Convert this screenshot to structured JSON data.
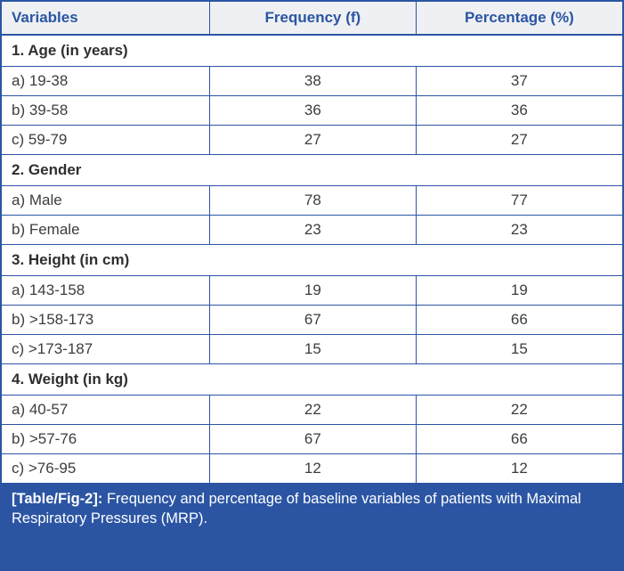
{
  "colors": {
    "accent": "#2b55a3",
    "header_bg": "#eef0f3",
    "body_text": "#3d3d3d",
    "caption_bg": "#2b55a3",
    "caption_text": "#ffffff"
  },
  "caption": {
    "label": "[Table/Fig-2]:",
    "text": "Frequency and percentage of baseline variables of patients with Maximal Respiratory Pressures (MRP)."
  },
  "chart_data": {
    "type": "table",
    "title": "[Table/Fig-2]: Frequency and percentage of baseline variables of patients with Maximal Respiratory Pressures (MRP).",
    "columns": [
      "Variables",
      "Frequency (f)",
      "Percentage (%)"
    ],
    "sections": [
      {
        "header": "1. Age (in years)",
        "rows": [
          {
            "label": "a) 19-38",
            "frequency": "38",
            "percentage": "37"
          },
          {
            "label": "b) 39-58",
            "frequency": "36",
            "percentage": "36"
          },
          {
            "label": "c) 59-79",
            "frequency": "27",
            "percentage": "27"
          }
        ]
      },
      {
        "header": "2. Gender",
        "rows": [
          {
            "label": "a) Male",
            "frequency": "78",
            "percentage": "77"
          },
          {
            "label": "b) Female",
            "frequency": "23",
            "percentage": "23"
          }
        ]
      },
      {
        "header": "3. Height (in cm)",
        "rows": [
          {
            "label": "a) 143-158",
            "frequency": "19",
            "percentage": "19"
          },
          {
            "label": "b) >158-173",
            "frequency": "67",
            "percentage": "66"
          },
          {
            "label": "c) >173-187",
            "frequency": "15",
            "percentage": "15"
          }
        ]
      },
      {
        "header": "4. Weight (in kg)",
        "rows": [
          {
            "label": "a) 40-57",
            "frequency": "22",
            "percentage": "22"
          },
          {
            "label": "b) >57-76",
            "frequency": "67",
            "percentage": "66"
          },
          {
            "label": "c) >76-95",
            "frequency": "12",
            "percentage": "12"
          }
        ]
      }
    ]
  }
}
